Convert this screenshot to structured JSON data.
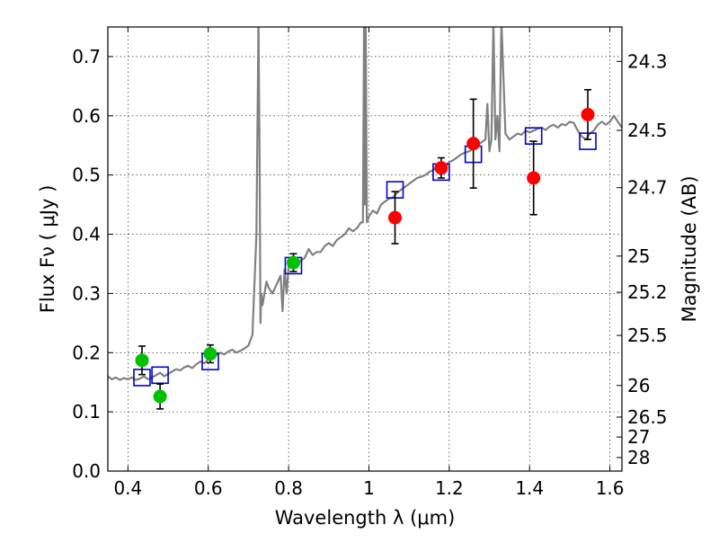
{
  "chart_data": {
    "type": "scatter",
    "xlabel": "Wavelength  λ (μm)",
    "ylabel": "Flux  Fν ( μJy )",
    "ylabel_right": "Magnitude (AB)",
    "xlim": [
      0.35,
      1.63
    ],
    "ylim": [
      0.0,
      0.75
    ],
    "grid": true,
    "x_ticks": [
      0.4,
      0.6,
      0.8,
      1.0,
      1.2,
      1.4,
      1.6
    ],
    "x_tick_labels": [
      "0.4",
      "0.6",
      "0.8",
      "1",
      "1.2",
      "1.4",
      "1.6"
    ],
    "y_ticks": [
      0.0,
      0.1,
      0.2,
      0.3,
      0.4,
      0.5,
      0.6,
      0.7
    ],
    "y_tick_labels": [
      "0.0",
      "0.1",
      "0.2",
      "0.3",
      "0.4",
      "0.5",
      "0.6",
      "0.7"
    ],
    "right_ticks": [
      {
        "mag": 24.3,
        "label": "24.3"
      },
      {
        "mag": 24.5,
        "label": "24.5"
      },
      {
        "mag": 24.7,
        "label": "24.7"
      },
      {
        "mag": 25.0,
        "label": "25"
      },
      {
        "mag": 25.2,
        "label": "25.2"
      },
      {
        "mag": 25.5,
        "label": "25.5"
      },
      {
        "mag": 26.0,
        "label": "26"
      },
      {
        "mag": 26.5,
        "label": "26.5"
      },
      {
        "mag": 27.0,
        "label": "27"
      },
      {
        "mag": 28.0,
        "label": "28"
      }
    ],
    "series": [
      {
        "kind": "line",
        "color": "#808080",
        "x": [
          0.35,
          0.36,
          0.37,
          0.38,
          0.39,
          0.4,
          0.41,
          0.42,
          0.43,
          0.44,
          0.45,
          0.46,
          0.47,
          0.48,
          0.49,
          0.5,
          0.51,
          0.52,
          0.53,
          0.54,
          0.55,
          0.56,
          0.57,
          0.58,
          0.59,
          0.6,
          0.61,
          0.62,
          0.63,
          0.64,
          0.65,
          0.66,
          0.67,
          0.68,
          0.69,
          0.7,
          0.71,
          0.72,
          0.725,
          0.728,
          0.73,
          0.732,
          0.735,
          0.74,
          0.745,
          0.75,
          0.76,
          0.77,
          0.78,
          0.785,
          0.79,
          0.795,
          0.8,
          0.81,
          0.82,
          0.83,
          0.84,
          0.85,
          0.86,
          0.87,
          0.88,
          0.89,
          0.9,
          0.91,
          0.92,
          0.93,
          0.94,
          0.95,
          0.96,
          0.97,
          0.98,
          0.985,
          0.988,
          0.99,
          0.992,
          0.995,
          1.0,
          1.01,
          1.02,
          1.03,
          1.04,
          1.05,
          1.06,
          1.07,
          1.08,
          1.09,
          1.1,
          1.11,
          1.12,
          1.13,
          1.14,
          1.15,
          1.16,
          1.17,
          1.18,
          1.19,
          1.2,
          1.21,
          1.22,
          1.23,
          1.24,
          1.25,
          1.26,
          1.27,
          1.28,
          1.29,
          1.295,
          1.3,
          1.305,
          1.31,
          1.315,
          1.32,
          1.325,
          1.33,
          1.34,
          1.35,
          1.36,
          1.37,
          1.38,
          1.39,
          1.4,
          1.41,
          1.42,
          1.43,
          1.44,
          1.45,
          1.46,
          1.47,
          1.48,
          1.49,
          1.5,
          1.51,
          1.52,
          1.53,
          1.54,
          1.55,
          1.56,
          1.57,
          1.58,
          1.59,
          1.6,
          1.61,
          1.62,
          1.63
        ],
        "y": [
          0.16,
          0.155,
          0.158,
          0.154,
          0.157,
          0.155,
          0.158,
          0.154,
          0.156,
          0.16,
          0.155,
          0.158,
          0.162,
          0.166,
          0.16,
          0.164,
          0.168,
          0.172,
          0.17,
          0.175,
          0.178,
          0.174,
          0.18,
          0.185,
          0.182,
          0.188,
          0.192,
          0.196,
          0.2,
          0.197,
          0.202,
          0.205,
          0.2,
          0.203,
          0.207,
          0.212,
          0.23,
          0.4,
          0.76,
          0.52,
          0.25,
          0.3,
          0.28,
          0.3,
          0.32,
          0.31,
          0.3,
          0.315,
          0.33,
          0.27,
          0.34,
          0.3,
          0.345,
          0.355,
          0.35,
          0.355,
          0.36,
          0.375,
          0.365,
          0.37,
          0.37,
          0.38,
          0.385,
          0.38,
          0.39,
          0.395,
          0.4,
          0.41,
          0.405,
          0.41,
          0.42,
          0.42,
          0.76,
          0.45,
          0.76,
          0.42,
          0.43,
          0.44,
          0.435,
          0.45,
          0.455,
          0.46,
          0.462,
          0.47,
          0.475,
          0.48,
          0.485,
          0.49,
          0.495,
          0.497,
          0.5,
          0.505,
          0.508,
          0.515,
          0.52,
          0.515,
          0.522,
          0.525,
          0.53,
          0.535,
          0.538,
          0.54,
          0.545,
          0.55,
          0.555,
          0.56,
          0.62,
          0.54,
          0.56,
          0.76,
          0.56,
          0.6,
          0.54,
          0.76,
          0.57,
          0.56,
          0.565,
          0.57,
          0.568,
          0.575,
          0.572,
          0.575,
          0.578,
          0.58,
          0.576,
          0.582,
          0.585,
          0.58,
          0.586,
          0.584,
          0.59,
          0.588,
          0.575,
          0.565,
          0.56,
          0.57,
          0.575,
          0.585,
          0.59,
          0.585,
          0.59,
          0.6,
          0.59,
          0.58
        ]
      },
      {
        "kind": "squares",
        "color": "#0000cc",
        "x": [
          0.435,
          0.48,
          0.605,
          0.812,
          1.065,
          1.18,
          1.26,
          1.41,
          1.545
        ],
        "y": [
          0.158,
          0.162,
          0.185,
          0.347,
          0.475,
          0.505,
          0.535,
          0.566,
          0.557
        ]
      },
      {
        "kind": "points",
        "color": "#00c000",
        "x": [
          0.435,
          0.48,
          0.605,
          0.812
        ],
        "y": [
          0.187,
          0.126,
          0.198,
          0.352
        ],
        "yerr": [
          0.024,
          0.021,
          0.015,
          0.015
        ]
      },
      {
        "kind": "points",
        "color": "#ff0000",
        "x": [
          1.065,
          1.18,
          1.26,
          1.41,
          1.545
        ],
        "y": [
          0.428,
          0.512,
          0.553,
          0.495,
          0.602
        ],
        "yerr": [
          0.044,
          0.017,
          0.075,
          0.062,
          0.042
        ]
      }
    ]
  }
}
